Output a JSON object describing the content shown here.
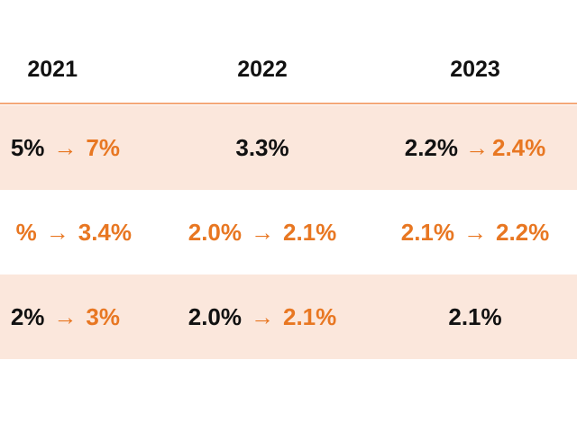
{
  "table": {
    "headers": [
      "2021",
      "2022",
      "2023"
    ],
    "rows": [
      {
        "c1": {
          "from": "5%",
          "arrow": "→",
          "to": "7%"
        },
        "c2": {
          "value": "3.3%"
        },
        "c3": {
          "from": "2.2%",
          "arrow": "→",
          "to": "2.4%"
        }
      },
      {
        "c1": {
          "from": "%",
          "arrow": "→",
          "to": "3.4%"
        },
        "c2": {
          "from": "2.0%",
          "arrow": "→",
          "to": "2.1%"
        },
        "c3": {
          "from": "2.1%",
          "arrow": "→",
          "to": "2.2%"
        }
      },
      {
        "c1": {
          "from": "2%",
          "arrow": "→",
          "to": "3%"
        },
        "c2": {
          "from": "2.0%",
          "arrow": "→",
          "to": "2.1%"
        },
        "c3": {
          "value": "2.1%"
        }
      }
    ]
  },
  "colors": {
    "accent": "#e87722",
    "row_shade": "#fbe7dc",
    "rule": "#f4a878",
    "text": "#111111"
  }
}
